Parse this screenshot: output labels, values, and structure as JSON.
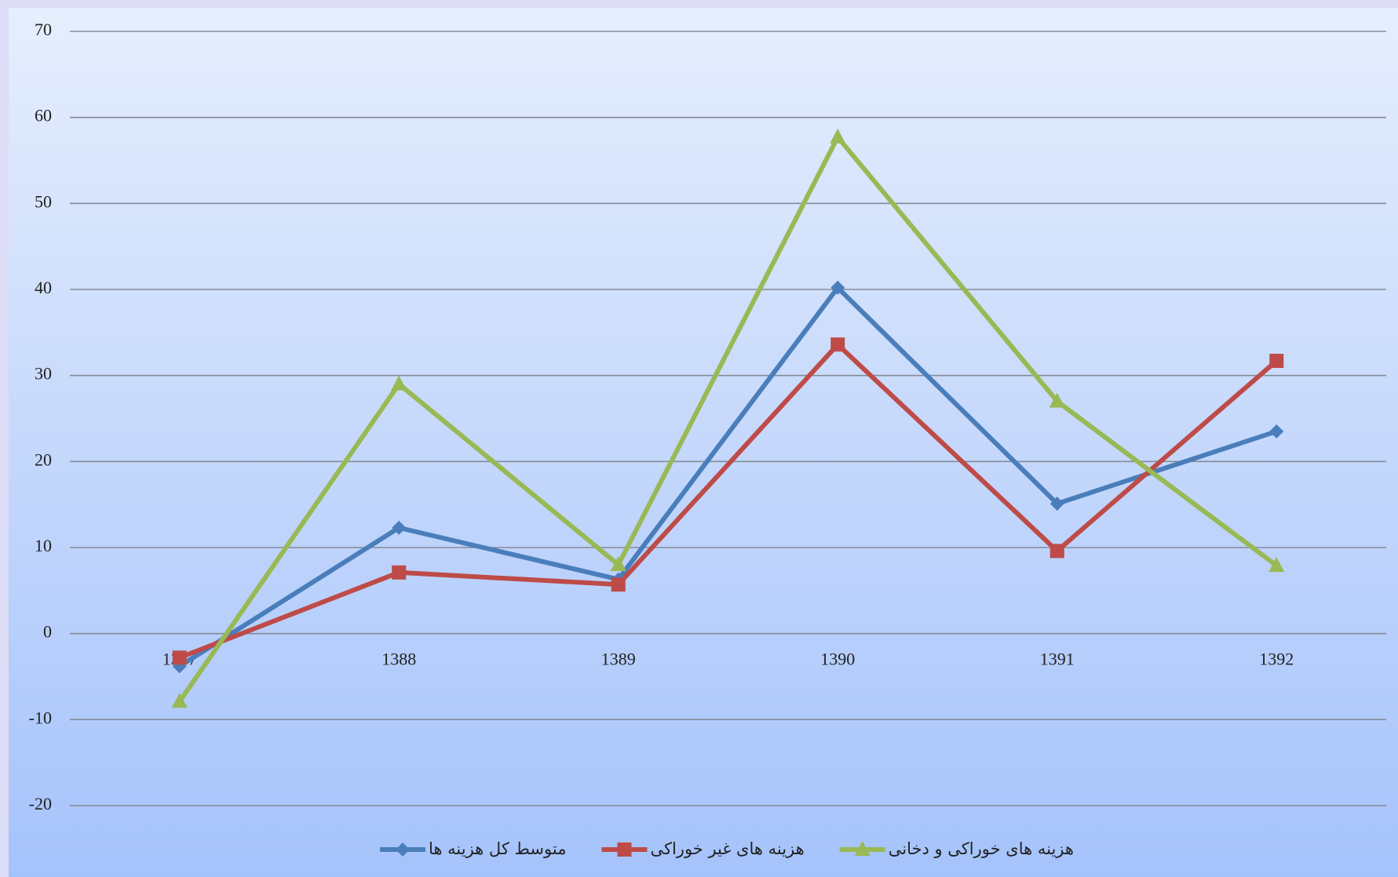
{
  "chart_data": {
    "type": "line",
    "categories": [
      "1387",
      "1388",
      "1389",
      "1390",
      "1391",
      "1392"
    ],
    "series": [
      {
        "name": "متوسط کل هزینه ها",
        "color": "#4a7ebb",
        "marker": "diamond",
        "values": [
          -3.8,
          12.3,
          6.3,
          40.2,
          15.1,
          23.5
        ]
      },
      {
        "name": "هزینه های غیر خوراکی",
        "color": "#be4b48",
        "marker": "square",
        "values": [
          -2.8,
          7.1,
          5.7,
          33.6,
          9.6,
          31.7
        ]
      },
      {
        "name": "هزینه های خوراکی و دخانی",
        "color": "#98b954",
        "marker": "triangle",
        "values": [
          -7.9,
          29.0,
          8.0,
          57.7,
          27.0,
          7.9
        ]
      }
    ],
    "ylim": [
      -20,
      70
    ],
    "yticks": [
      -20,
      -10,
      0,
      10,
      20,
      30,
      40,
      50,
      60,
      70
    ],
    "grid": true,
    "legend": "bottom"
  }
}
